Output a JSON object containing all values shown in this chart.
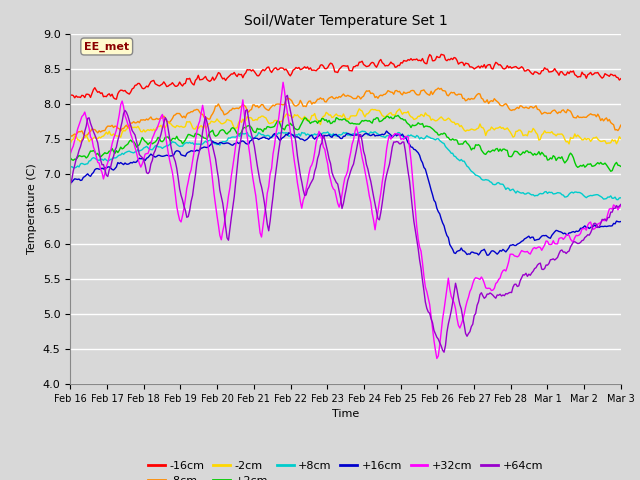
{
  "title": "Soil/Water Temperature Set 1",
  "xlabel": "Time",
  "ylabel": "Temperature (C)",
  "ylim": [
    4.0,
    9.0
  ],
  "yticks": [
    4.0,
    4.5,
    5.0,
    5.5,
    6.0,
    6.5,
    7.0,
    7.5,
    8.0,
    8.5,
    9.0
  ],
  "xtick_labels": [
    "Feb 16",
    "Feb 17",
    "Feb 18",
    "Feb 19",
    "Feb 20",
    "Feb 21",
    "Feb 22",
    "Feb 23",
    "Feb 24",
    "Feb 25",
    "Feb 26",
    "Feb 27",
    "Feb 28",
    "Mar 1",
    "Mar 2",
    "Mar 3"
  ],
  "annotation": "EE_met",
  "annotation_color": "#8B0000",
  "annotation_bg": "#FFFACD",
  "series_colors": {
    "-16cm": "#FF0000",
    "-8cm": "#FF8C00",
    "-2cm": "#FFD700",
    "+2cm": "#00CC00",
    "+8cm": "#00CCCC",
    "+16cm": "#0000CC",
    "+32cm": "#FF00FF",
    "+64cm": "#9900CC"
  },
  "bg_color": "#D8D8D8",
  "plot_bg_color": "#D8D8D8",
  "grid_color": "#FFFFFF"
}
